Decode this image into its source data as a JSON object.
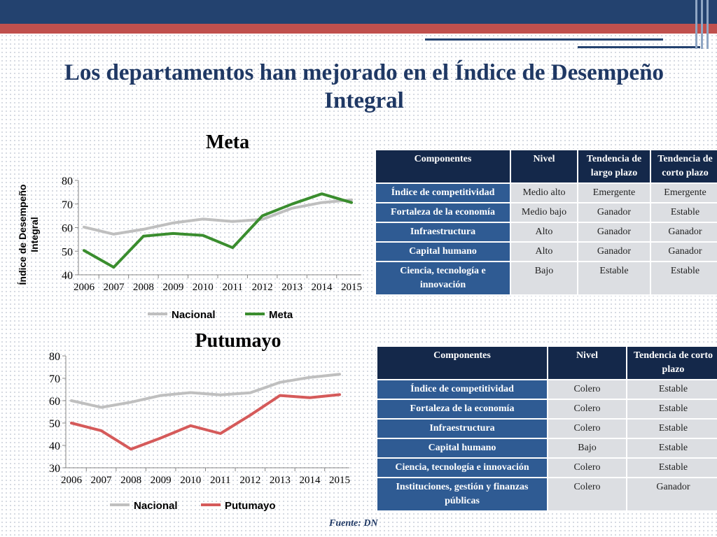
{
  "title": "Los departamentos han mejorado en el Índice de Desempeño Integral",
  "chart_data": [
    {
      "type": "line",
      "title": "Meta",
      "xlabel": "",
      "ylabel": "Índice de Desempeño Integral",
      "x": [
        "2006",
        "2007",
        "2008",
        "2009",
        "2010",
        "2011",
        "2012",
        "2013",
        "2014",
        "2015"
      ],
      "ylim": [
        40,
        80
      ],
      "yticks": [
        40,
        50,
        60,
        70,
        80
      ],
      "legend_position": "bottom",
      "grid": false,
      "series": [
        {
          "name": "Nacional",
          "color": "#bfbfbf",
          "values": [
            60.2,
            57.2,
            59.3,
            62,
            63.6,
            62.6,
            63.5,
            68.2,
            70.6,
            71.8
          ]
        },
        {
          "name": "Meta",
          "color": "#3a8d2e",
          "values": [
            50.3,
            43.2,
            56.4,
            57.5,
            56.7,
            51.5,
            65,
            70,
            74.3,
            70.6
          ]
        }
      ]
    },
    {
      "type": "line",
      "title": "Putumayo",
      "xlabel": "",
      "ylabel": "",
      "x": [
        "2006",
        "2007",
        "2008",
        "2009",
        "2010",
        "2011",
        "2012",
        "2013",
        "2014",
        "2015"
      ],
      "ylim": [
        30,
        80
      ],
      "yticks": [
        30,
        40,
        50,
        60,
        70,
        80
      ],
      "legend_position": "bottom",
      "grid": false,
      "series": [
        {
          "name": "Nacional",
          "color": "#bfbfbf",
          "values": [
            60,
            57,
            59.3,
            62.3,
            63.6,
            62.6,
            63.5,
            68.2,
            70.4,
            71.8
          ]
        },
        {
          "name": "Putumayo",
          "color": "#d55a5a",
          "values": [
            50,
            46.6,
            38.3,
            43.3,
            48.8,
            45.3,
            53.5,
            62.3,
            61.3,
            62.7
          ]
        }
      ]
    },
    {
      "type": "table",
      "headers": [
        "Componentes",
        "Nivel",
        "Tendencia de largo plazo",
        "Tendencia de corto plazo"
      ],
      "rows": [
        [
          "Índice de competitividad",
          "Medio alto",
          "Emergente",
          "Emergente"
        ],
        [
          "Fortaleza de la economía",
          "Medio bajo",
          "Ganador",
          "Estable"
        ],
        [
          "Infraestructura",
          "Alto",
          "Ganador",
          "Ganador"
        ],
        [
          "Capital humano",
          "Alto",
          "Ganador",
          "Ganador"
        ],
        [
          "Ciencia, tecnología e innovación",
          "Bajo",
          "Estable",
          "Estable"
        ]
      ]
    },
    {
      "type": "table",
      "headers": [
        "Componentes",
        "Nivel",
        "Tendencia de corto plazo"
      ],
      "rows": [
        [
          "Índice de competitividad",
          "Colero",
          "Estable"
        ],
        [
          "Fortaleza de la economía",
          "Colero",
          "Estable"
        ],
        [
          "Infraestructura",
          "Colero",
          "Estable"
        ],
        [
          "Capital humano",
          "Bajo",
          "Estable"
        ],
        [
          "Ciencia, tecnología e innovación",
          "Colero",
          "Estable"
        ],
        [
          "Instituciones, gestión y finanzas públicas",
          "Colero",
          "Ganador"
        ]
      ]
    }
  ],
  "footer": {
    "source": "Fuente: DN"
  }
}
